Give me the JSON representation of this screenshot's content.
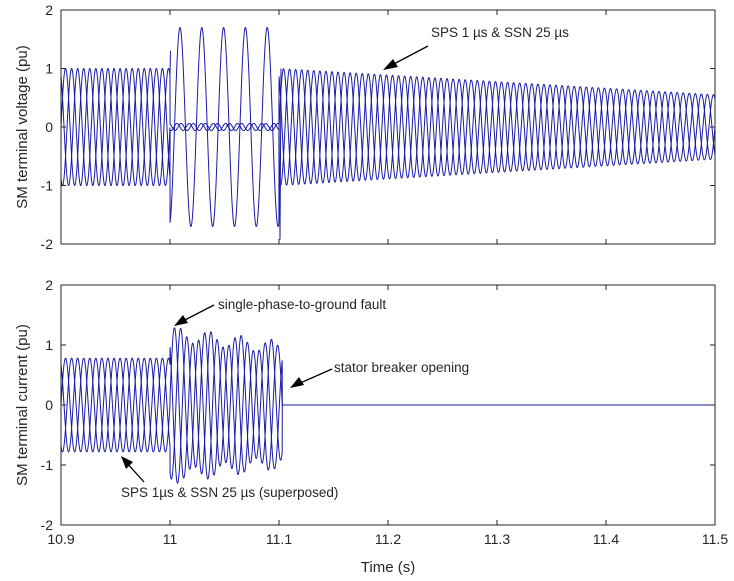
{
  "colors": {
    "series": "#1a1aa8",
    "axis": "#262626",
    "arrow": "#000000"
  },
  "chart_data": [
    {
      "type": "line",
      "ylabel": "SM terminal voltage (pu)",
      "xlabel": "",
      "xlim": [
        10.9,
        11.5
      ],
      "ylim": [
        -2,
        2
      ],
      "xticks": [
        10.9,
        11.0,
        11.1,
        11.2,
        11.3,
        11.4,
        11.5
      ],
      "yticks": [
        -2,
        -1,
        0,
        1,
        2
      ],
      "xtick_labels": [],
      "ytick_labels": [
        "-2",
        "-1",
        "0",
        "1",
        "2"
      ],
      "grid": false,
      "signal": {
        "phases": 3,
        "fundamental_hz": 60,
        "pre_fault_amplitude": 1.0,
        "fault_start_s": 11.0,
        "fault_end_s": 11.1,
        "fault_phase_amplitude": 1.7,
        "fault_frequency_hz": 50,
        "post_amplitude_start": 1.0,
        "post_amplitude_end": 0.55
      },
      "annotations": [
        {
          "text": "SPS 1 µs & SSN 25 µs",
          "point_to": [
            11.2,
            1.0
          ]
        }
      ]
    },
    {
      "type": "line",
      "ylabel": "SM terminal current (pu)",
      "xlabel": "Time (s)",
      "xlim": [
        10.9,
        11.5
      ],
      "ylim": [
        -2,
        2
      ],
      "xticks": [
        10.9,
        11.0,
        11.1,
        11.2,
        11.3,
        11.4,
        11.5
      ],
      "yticks": [
        -2,
        -1,
        0,
        1,
        2
      ],
      "xtick_labels": [
        "10.9",
        "11",
        "11.1",
        "11.2",
        "11.3",
        "11.4",
        "11.5"
      ],
      "ytick_labels": [
        "-2",
        "-1",
        "0",
        "1",
        "2"
      ],
      "grid": false,
      "signal": {
        "phases": 3,
        "fundamental_hz": 60,
        "pre_fault_amplitude": 0.78,
        "fault_start_s": 11.0,
        "fault_peak_amplitude": 1.2,
        "fault_end_amplitude": 0.95,
        "breaker_open_s": 11.103,
        "post_value": 0
      },
      "annotations": [
        {
          "text": "single-phase-to-ground fault",
          "point_to": [
            11.002,
            1.15
          ]
        },
        {
          "text": "stator breaker opening",
          "point_to": [
            11.106,
            -0.2
          ]
        },
        {
          "text": "SPS 1µs & SSN 25 µs (superposed)",
          "point_to": [
            10.92,
            -0.92
          ]
        }
      ]
    }
  ]
}
